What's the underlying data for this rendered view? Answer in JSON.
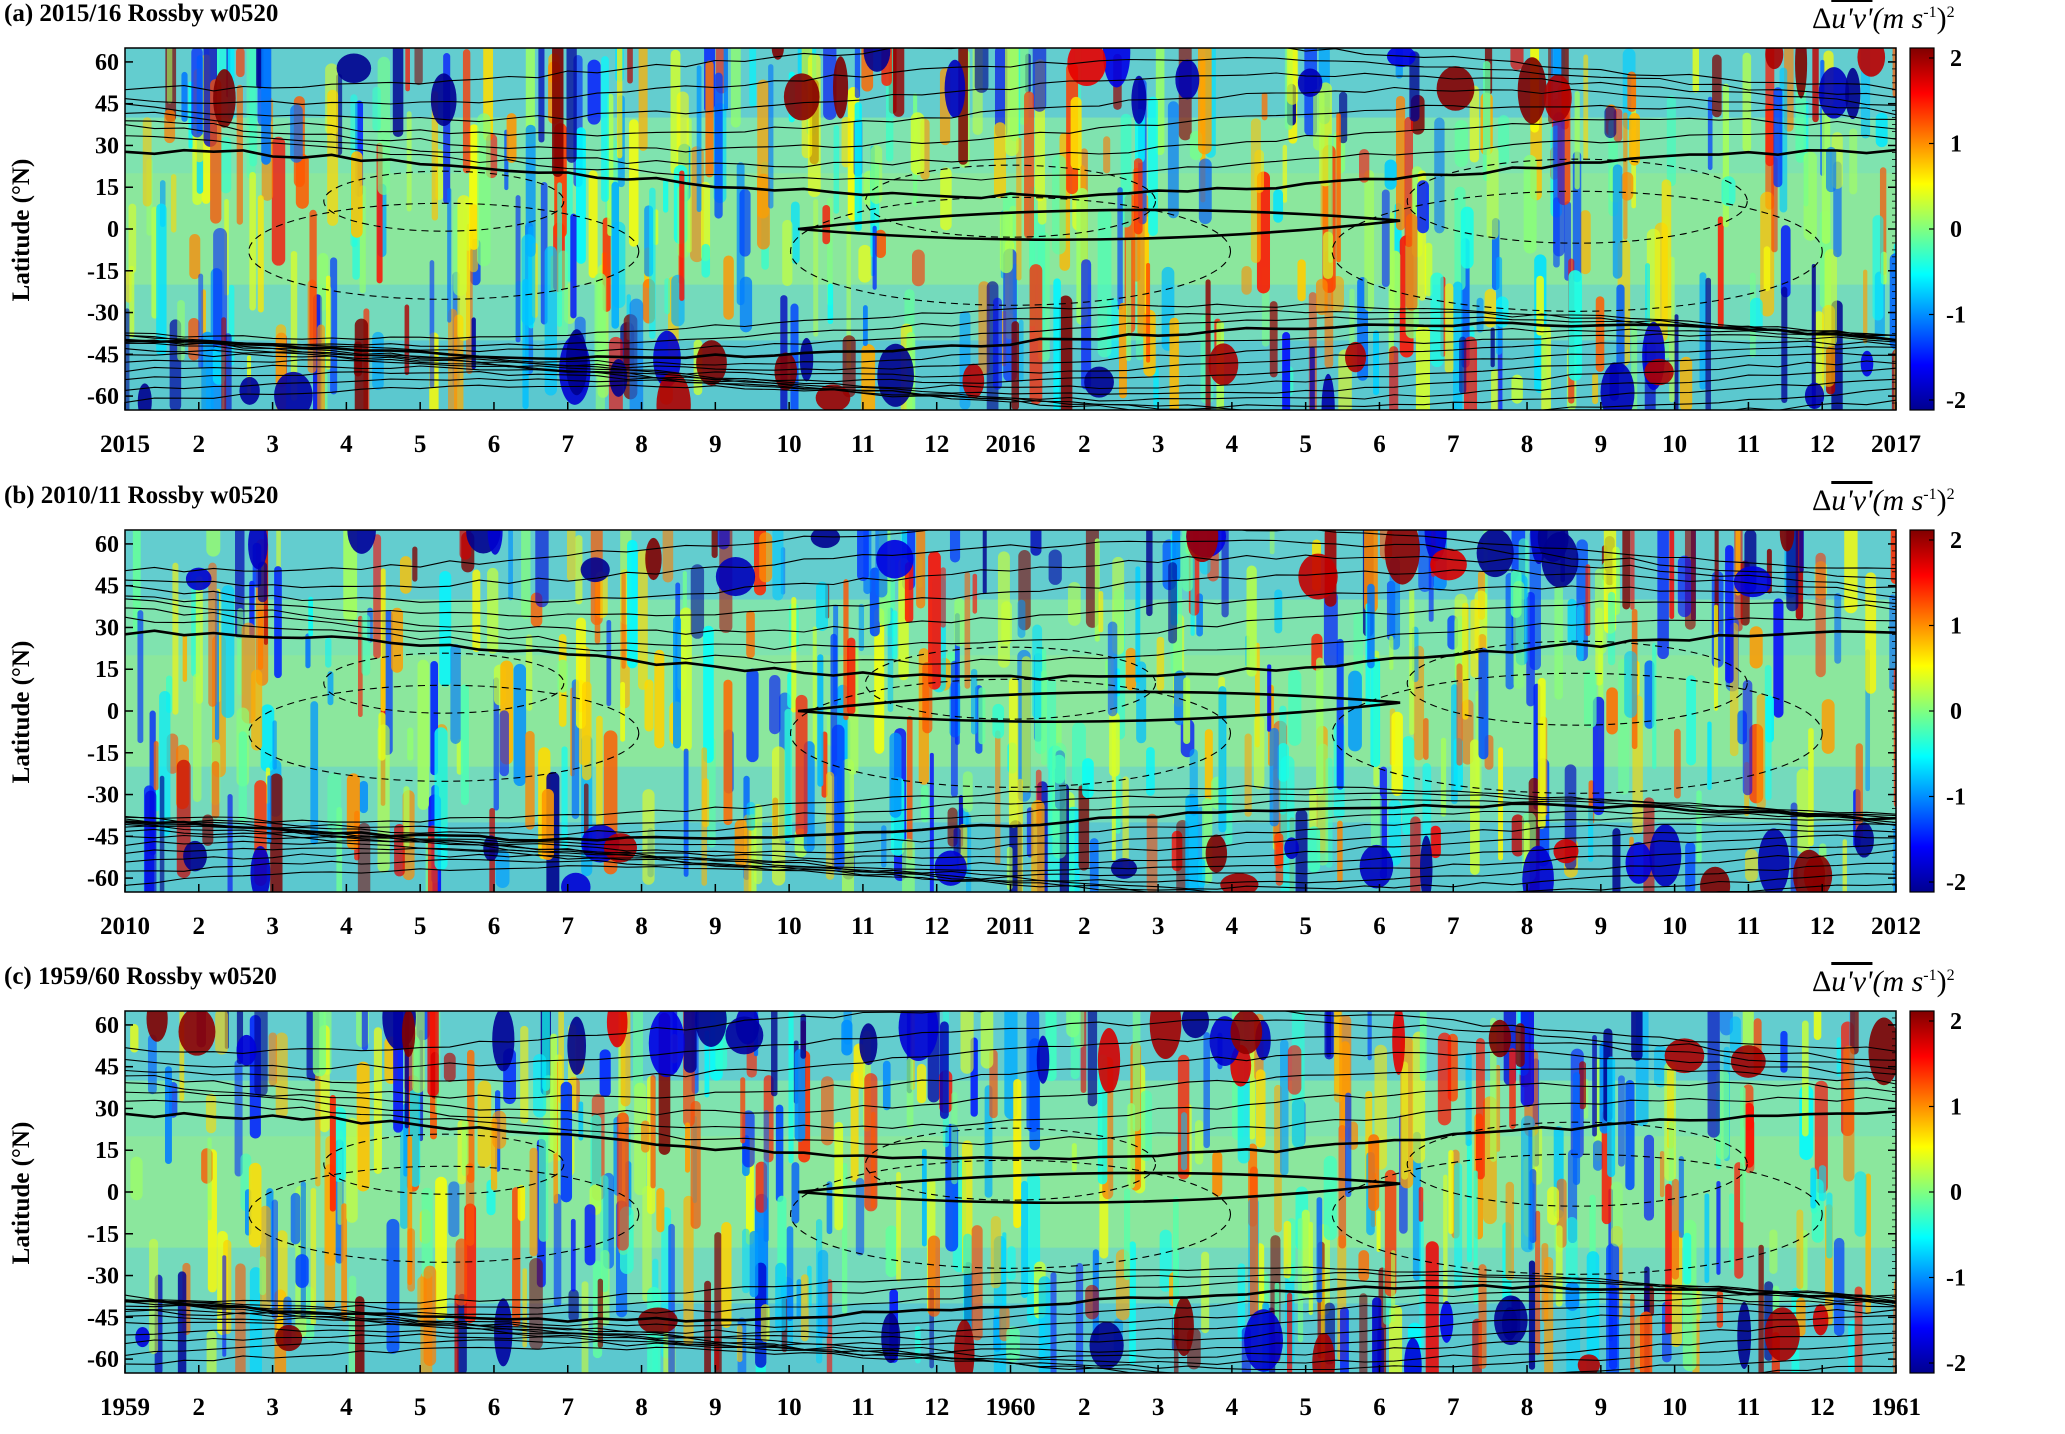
{
  "colormap": [
    "#00008f",
    "#0000ff",
    "#0080ff",
    "#00ffff",
    "#80ff80",
    "#ffff00",
    "#ff8000",
    "#ff0000",
    "#800000"
  ],
  "panels": [
    {
      "title": "(a) 2015/16 Rossby w0520",
      "ylabel": "Latitude (°N)",
      "months": [
        "2015",
        "2",
        "3",
        "4",
        "5",
        "6",
        "7",
        "8",
        "9",
        "10",
        "11",
        "12",
        "2016",
        "2",
        "3",
        "4",
        "5",
        "6",
        "7",
        "8",
        "9",
        "10",
        "11",
        "12",
        "2017"
      ],
      "seed": 11
    },
    {
      "title": "(b) 2010/11 Rossby w0520",
      "ylabel": "Latitude (°N)",
      "months": [
        "2010",
        "2",
        "3",
        "4",
        "5",
        "6",
        "7",
        "8",
        "9",
        "10",
        "11",
        "12",
        "2011",
        "2",
        "3",
        "4",
        "5",
        "6",
        "7",
        "8",
        "9",
        "10",
        "11",
        "12",
        "2012"
      ],
      "seed": 23
    },
    {
      "title": "(c) 1959/60 Rossby w0520",
      "ylabel": "Latitude (°N)",
      "months": [
        "1959",
        "2",
        "3",
        "4",
        "5",
        "6",
        "7",
        "8",
        "9",
        "10",
        "11",
        "12",
        "1960",
        "2",
        "3",
        "4",
        "5",
        "6",
        "7",
        "8",
        "9",
        "10",
        "11",
        "12",
        "1961"
      ],
      "seed": 37
    }
  ],
  "chart_data": [
    {
      "type": "heatmap",
      "title": "(a) 2015/16 Rossby w0520",
      "ylabel": "Latitude (°N)",
      "xlabel": "",
      "x_ticks": [
        "2015",
        "2",
        "3",
        "4",
        "5",
        "6",
        "7",
        "8",
        "9",
        "10",
        "11",
        "12",
        "2016",
        "2",
        "3",
        "4",
        "5",
        "6",
        "7",
        "8",
        "9",
        "10",
        "11",
        "12",
        "2017"
      ],
      "y_ticks": [
        60,
        45,
        30,
        15,
        0,
        -15,
        -30,
        -45,
        -60
      ],
      "ylim": [
        -65,
        65
      ],
      "colorbar": {
        "label_parts": [
          "Δ",
          "u'v'",
          "(m s",
          "-1",
          ")",
          "2"
        ],
        "ticks": [
          2,
          1,
          0,
          -1,
          -2
        ],
        "range": [
          -2,
          2
        ]
      }
    },
    {
      "type": "heatmap",
      "title": "(b) 2010/11 Rossby w0520",
      "ylabel": "Latitude (°N)",
      "xlabel": "",
      "x_ticks": [
        "2010",
        "2",
        "3",
        "4",
        "5",
        "6",
        "7",
        "8",
        "9",
        "10",
        "11",
        "12",
        "2011",
        "2",
        "3",
        "4",
        "5",
        "6",
        "7",
        "8",
        "9",
        "10",
        "11",
        "12",
        "2012"
      ],
      "y_ticks": [
        60,
        45,
        30,
        15,
        0,
        -15,
        -30,
        -45,
        -60
      ],
      "ylim": [
        -65,
        65
      ],
      "colorbar": {
        "label_parts": [
          "Δ",
          "u'v'",
          "(m s",
          "-1",
          ")",
          "2"
        ],
        "ticks": [
          2,
          1,
          0,
          -1,
          -2
        ],
        "range": [
          -2,
          2
        ]
      }
    },
    {
      "type": "heatmap",
      "title": "(c) 1959/60 Rossby w0520",
      "ylabel": "Latitude (°N)",
      "xlabel": "",
      "x_ticks": [
        "1959",
        "2",
        "3",
        "4",
        "5",
        "6",
        "7",
        "8",
        "9",
        "10",
        "11",
        "12",
        "1960",
        "2",
        "3",
        "4",
        "5",
        "6",
        "7",
        "8",
        "9",
        "10",
        "11",
        "12",
        "1961"
      ],
      "y_ticks": [
        60,
        45,
        30,
        15,
        0,
        -15,
        -30,
        -45,
        -60
      ],
      "ylim": [
        -65,
        65
      ],
      "colorbar": {
        "label_parts": [
          "Δ",
          "u'v'",
          "(m s",
          "-1",
          ")",
          "2"
        ],
        "ticks": [
          2,
          1,
          0,
          -1,
          -2
        ],
        "range": [
          -2,
          2
        ]
      }
    }
  ],
  "colorbar_label": {
    "delta": "Δ",
    "uv": "u'v'",
    "unit_open": "(m s",
    "unit_exp": "-1",
    "unit_close": ")",
    "power": "2"
  }
}
